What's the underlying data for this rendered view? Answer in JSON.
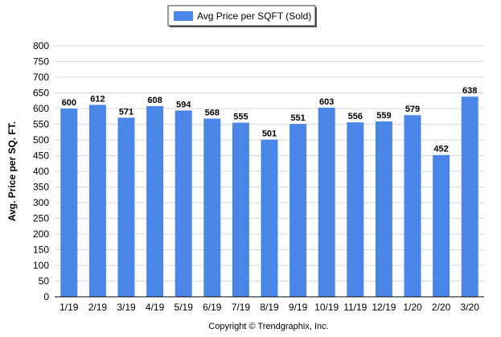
{
  "chart_data": {
    "type": "bar",
    "categories": [
      "1/19",
      "2/19",
      "3/19",
      "4/19",
      "5/19",
      "6/19",
      "7/19",
      "8/19",
      "9/19",
      "10/19",
      "11/19",
      "12/19",
      "1/20",
      "2/20",
      "3/20"
    ],
    "series": [
      {
        "name": "Avg Price per SQFT (Sold)",
        "values": [
          600,
          612,
          571,
          608,
          594,
          568,
          555,
          501,
          551,
          603,
          556,
          559,
          579,
          452,
          638
        ],
        "color": "#4a86e8"
      }
    ],
    "ylabel": "Avg. Price per SQ. FT.",
    "ylim": [
      0,
      800
    ],
    "yticks": [
      0,
      50,
      100,
      150,
      200,
      250,
      300,
      350,
      400,
      450,
      500,
      550,
      600,
      650,
      700,
      750,
      800
    ],
    "grid": true,
    "legend_position": "top-center",
    "data_labels": true
  },
  "credit": "Copyright © Trendgraphix, Inc."
}
